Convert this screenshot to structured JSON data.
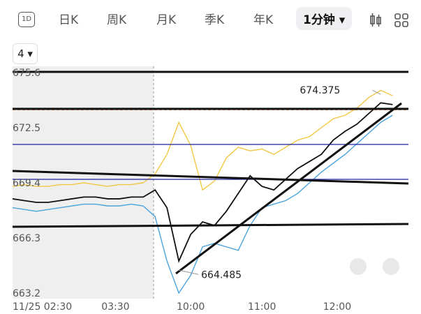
{
  "toolbar": {
    "icon_label": "1D",
    "tabs": [
      "日K",
      "周K",
      "月K",
      "季K",
      "年K"
    ],
    "active_tab": "1分钟",
    "period": "4"
  },
  "chart_data": {
    "type": "line",
    "x": [
      0,
      3,
      6,
      9,
      12,
      15,
      18,
      21,
      24,
      27,
      30,
      33,
      36,
      39,
      42,
      45,
      48,
      51,
      54,
      57,
      60,
      63,
      66,
      69,
      72,
      75,
      78,
      81,
      84,
      87,
      90,
      93,
      96
    ],
    "xlim": [
      0,
      100
    ],
    "xticks": [
      {
        "value": 0,
        "label": "11/25 02:30"
      },
      {
        "value": 26,
        "label": "03:30"
      },
      {
        "value": 45,
        "label": "10:00"
      },
      {
        "value": 63,
        "label": "11:00"
      },
      {
        "value": 82,
        "label": "12:00"
      }
    ],
    "ylim": [
      663.2,
      675.6
    ],
    "yticks": [
      663.2,
      666.3,
      669.4,
      672.5,
      675.6
    ],
    "grid": true,
    "series": [
      {
        "color": "#111111",
        "values": [
          668.5,
          668.4,
          668.3,
          668.3,
          668.4,
          668.5,
          668.6,
          668.6,
          668.5,
          668.5,
          668.6,
          668.6,
          669.0,
          668.0,
          665.0,
          666.5,
          667.2,
          667.0,
          667.8,
          668.8,
          669.8,
          669.2,
          669.0,
          669.6,
          670.2,
          670.6,
          671.0,
          671.8,
          672.3,
          672.7,
          673.3,
          673.9,
          673.8
        ]
      },
      {
        "color": "#f2c744",
        "values": [
          669.2,
          669.3,
          669.2,
          669.2,
          669.3,
          669.3,
          669.4,
          669.3,
          669.2,
          669.3,
          669.3,
          669.4,
          669.9,
          671.0,
          672.8,
          671.5,
          669.0,
          669.5,
          670.8,
          671.4,
          671.2,
          671.3,
          671.0,
          671.4,
          671.8,
          672.0,
          672.5,
          673.0,
          673.2,
          673.6,
          674.2,
          674.6,
          674.3
        ]
      },
      {
        "color": "#4ca3dd",
        "values": [
          668.0,
          667.9,
          667.8,
          667.9,
          668.0,
          668.1,
          668.2,
          668.2,
          668.1,
          668.1,
          668.2,
          668.1,
          667.5,
          665.0,
          663.2,
          664.2,
          665.8,
          666.0,
          665.8,
          665.6,
          667.0,
          668.0,
          668.2,
          668.4,
          668.8,
          669.4,
          670.0,
          670.5,
          671.0,
          671.6,
          672.2,
          672.8,
          673.2
        ]
      }
    ],
    "current_price": 673.5,
    "annotations": [
      {
        "x": 93,
        "value": 674.375,
        "label": "674.375"
      },
      {
        "x": 42,
        "value": 664.485,
        "label": "664.485"
      }
    ]
  }
}
